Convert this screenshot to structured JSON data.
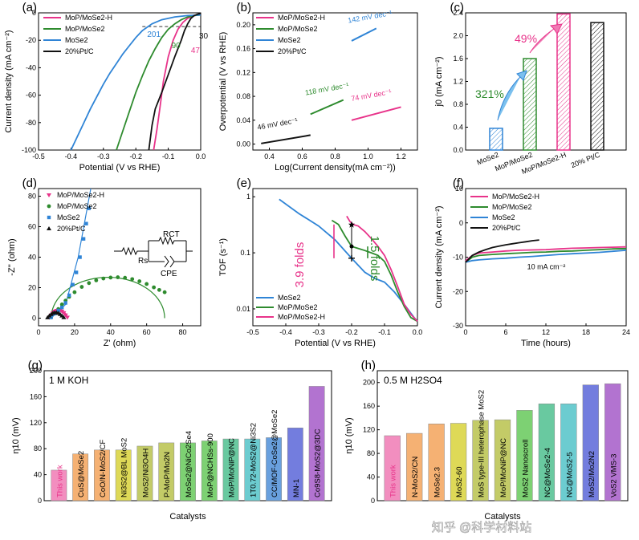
{
  "colors": {
    "mop_mose2_h": "#e8338a",
    "mop_mose2": "#2e8b2e",
    "mose2": "#2f84d6",
    "ptc": "#111111",
    "bar_g_pink": "#f07ab4",
    "bar_g_orange": "#f3a35a",
    "bar_g_yellow": "#d8d23a",
    "bar_g_olive": "#b9c24c",
    "bar_g_green": "#66c95a",
    "bar_g_teal": "#4fbf8f",
    "bar_g_cyan": "#52c3c8",
    "bar_g_blue": "#4f8fd8",
    "bar_g_indigo": "#5a66d8",
    "bar_g_violet": "#8a5ad8",
    "bar_g_purple": "#a55ac8"
  },
  "watermark": "知乎 @科学材料站",
  "chart_data": [
    {
      "panel": "(a)",
      "type": "line",
      "xlabel": "Potential (V vs RHE)",
      "ylabel": "Current density (mA cm⁻²)",
      "xlim": [
        -0.5,
        0.0
      ],
      "ylim": [
        -100,
        0
      ],
      "xticks": [
        "-0.5",
        "-0.4",
        "-0.3",
        "-0.2",
        "-0.1",
        "0.0"
      ],
      "yticks": [
        "0",
        "-20",
        "-40",
        "-60",
        "-80",
        "-100"
      ],
      "legend": [
        "MoP/MoSe2-H",
        "MoP/MoSe2",
        "MoSe2",
        "20%Pt/C"
      ],
      "annotations": [
        "201",
        "90",
        "47",
        "30"
      ],
      "reference_line_y": -10,
      "series": [
        {
          "name": "MoP/MoSe2-H",
          "color_key": "mop_mose2_h",
          "x": [
            -0.145,
            -0.135,
            -0.125,
            -0.115,
            -0.1,
            -0.085,
            -0.07,
            -0.055,
            -0.04,
            -0.025,
            -0.012,
            0.0
          ],
          "y": [
            -100,
            -85,
            -68,
            -50,
            -32,
            -20,
            -12,
            -7,
            -4,
            -2.5,
            -1.5,
            -1
          ]
        },
        {
          "name": "MoP/MoSe2",
          "color_key": "mop_mose2",
          "x": [
            -0.26,
            -0.24,
            -0.22,
            -0.2,
            -0.18,
            -0.16,
            -0.14,
            -0.12,
            -0.1,
            -0.08,
            -0.06,
            -0.04,
            -0.02,
            0.0
          ],
          "y": [
            -100,
            -86,
            -72,
            -58,
            -46,
            -35,
            -26,
            -18,
            -12,
            -8,
            -5,
            -3,
            -2,
            -1.5
          ]
        },
        {
          "name": "MoSe2",
          "color_key": "mose2",
          "x": [
            -0.4,
            -0.38,
            -0.36,
            -0.34,
            -0.32,
            -0.3,
            -0.28,
            -0.26,
            -0.24,
            -0.22,
            -0.2,
            -0.18,
            -0.15,
            -0.12,
            -0.08,
            -0.04,
            0.0
          ],
          "y": [
            -100,
            -90,
            -80,
            -70,
            -61,
            -52,
            -44,
            -37,
            -30,
            -24,
            -18,
            -13,
            -8,
            -5,
            -3,
            -2,
            -1.5
          ]
        },
        {
          "name": "20%Pt/C",
          "color_key": "ptc",
          "x": [
            -0.16,
            -0.15,
            -0.14,
            -0.12,
            -0.1,
            -0.08,
            -0.06,
            -0.05,
            -0.04,
            -0.03,
            -0.02,
            -0.01,
            0.0
          ],
          "y": [
            -100,
            -82,
            -70,
            -58,
            -45,
            -32,
            -20,
            -13,
            -8,
            -4,
            -2,
            -1,
            -0.5
          ]
        }
      ]
    },
    {
      "panel": "(b)",
      "type": "line",
      "xlabel": "Log(Current density(mA cm⁻²))",
      "ylabel": "Overpotential (V vs RHE)",
      "xlim": [
        0.3,
        1.3
      ],
      "ylim": [
        -0.01,
        0.22
      ],
      "xticks": [
        "0.4",
        "0.6",
        "0.8",
        "1.0",
        "1.2"
      ],
      "yticks": [
        "0.00",
        "0.04",
        "0.08",
        "0.12",
        "0.16",
        "0.20"
      ],
      "legend": [
        "MoP/MoSe2-H",
        "MoP/MoSe2",
        "MoSe2",
        "20%Pt/C"
      ],
      "series": [
        {
          "name": "MoP/MoSe2-H",
          "color_key": "mop_mose2_h",
          "x": [
            0.9,
            1.2
          ],
          "y": [
            0.04,
            0.062
          ],
          "label": "74 mV dec⁻¹"
        },
        {
          "name": "MoP/MoSe2",
          "color_key": "mop_mose2",
          "x": [
            0.65,
            0.85
          ],
          "y": [
            0.05,
            0.074
          ],
          "label": "118 mV dec⁻¹"
        },
        {
          "name": "MoSe2",
          "color_key": "mose2",
          "x": [
            0.9,
            1.05
          ],
          "y": [
            0.173,
            0.194
          ],
          "label": "142 mV dec⁻¹"
        },
        {
          "name": "20%Pt/C",
          "color_key": "ptc",
          "x": [
            0.35,
            0.65
          ],
          "y": [
            0.001,
            0.015
          ],
          "label": "46 mV dec⁻¹"
        }
      ]
    },
    {
      "panel": "(c)",
      "type": "bar",
      "ylabel": "j0 (mA cm⁻²)",
      "ylim": [
        0,
        2.4
      ],
      "yticks": [
        "0.0",
        "0.4",
        "0.8",
        "1.2",
        "1.6",
        "2.0",
        "2.4"
      ],
      "categories": [
        "MoSe2",
        "MoP/MoSe2",
        "MoP/MoSe2-H",
        "20% Pt/C"
      ],
      "values": [
        0.38,
        1.6,
        2.38,
        2.23
      ],
      "color_keys": [
        "mose2",
        "mop_mose2",
        "mop_mose2_h",
        "ptc"
      ],
      "annotations": [
        "321%",
        "49%"
      ]
    },
    {
      "panel": "(d)",
      "type": "scatter",
      "xlabel": "Z' (ohm)",
      "ylabel": "-Z'' (ohm)",
      "xlim": [
        0,
        90
      ],
      "ylim": [
        -5,
        85
      ],
      "xticks": [
        "0",
        "20",
        "40",
        "60",
        "80"
      ],
      "yticks": [
        "0",
        "20",
        "40",
        "60",
        "80"
      ],
      "legend": [
        "MoP/MoSe2-H",
        "MoP/MoSe2",
        "MoSe2",
        "20%Pt/C"
      ],
      "circuit_labels": [
        "Rs",
        "RCT",
        "CPE"
      ],
      "series": [
        {
          "name": "MoP/MoSe2-H",
          "color_key": "mop_mose2_h",
          "marker": "triangle-down",
          "x": [
            6,
            7,
            8,
            9,
            10,
            11,
            12,
            13,
            14,
            15,
            16
          ],
          "y": [
            0.5,
            2,
            3.5,
            4.5,
            5,
            5.2,
            5,
            4.5,
            3.5,
            2,
            0.5
          ]
        },
        {
          "name": "MoP/MoSe2",
          "color_key": "mop_mose2",
          "marker": "circle",
          "x": [
            7,
            9,
            11,
            13,
            15,
            17,
            20,
            24,
            28,
            32,
            36,
            40,
            44,
            48,
            52,
            56,
            60,
            64,
            67,
            70
          ],
          "y": [
            0.5,
            3,
            6,
            9,
            11.5,
            14,
            17,
            20.5,
            23,
            24.8,
            26,
            26.6,
            26.8,
            26.5,
            25.6,
            24.2,
            22.4,
            20.2,
            18.5,
            17
          ]
        },
        {
          "name": "MoSe2",
          "color_key": "mose2",
          "marker": "square",
          "x": [
            7,
            9,
            11,
            13,
            15,
            17,
            19,
            21,
            23,
            25,
            26.5,
            28
          ],
          "y": [
            0.5,
            3,
            5,
            7,
            10,
            15,
            22,
            30,
            40,
            52,
            62,
            72
          ]
        },
        {
          "name": "20%Pt/C",
          "color_key": "ptc",
          "marker": "triangle-up",
          "x": [
            5,
            6,
            7,
            8,
            9,
            10,
            11,
            12,
            13,
            14
          ],
          "y": [
            0.3,
            1.5,
            2.5,
            3.3,
            3.6,
            3.6,
            3.2,
            2.5,
            1.5,
            0.4
          ]
        }
      ]
    },
    {
      "panel": "(e)",
      "type": "line",
      "xlabel": "Potential (V vs RHE)",
      "ylabel": "TOF (s⁻¹)",
      "xlim": [
        -0.5,
        0.0
      ],
      "ylim": [
        0.005,
        1.4
      ],
      "ylog": true,
      "xticks": [
        "-0.5",
        "-0.4",
        "-0.3",
        "-0.2",
        "-0.1",
        "0.0"
      ],
      "yticks": [
        "0.01",
        "0.1",
        "1"
      ],
      "legend": [
        "MoSe2",
        "MoP/MoSe2",
        "MoP/MoSe2-H"
      ],
      "annotations": [
        "3.9 folds",
        "1.5 folds"
      ],
      "series": [
        {
          "name": "MoSe2",
          "color_key": "mose2",
          "x": [
            -0.42,
            -0.36,
            -0.3,
            -0.25,
            -0.2,
            -0.16,
            -0.13,
            -0.1,
            -0.07,
            -0.04,
            -0.01,
            0.0
          ],
          "y": [
            0.9,
            0.5,
            0.3,
            0.17,
            0.08,
            0.045,
            0.035,
            0.03,
            0.02,
            0.012,
            0.007,
            0.006
          ]
        },
        {
          "name": "MoP/MoSe2",
          "color_key": "mop_mose2",
          "x": [
            -0.26,
            -0.24,
            -0.22,
            -0.2,
            -0.18,
            -0.16,
            -0.14,
            -0.12,
            -0.1,
            -0.08,
            -0.06,
            -0.04,
            -0.02,
            0.0
          ],
          "y": [
            0.38,
            0.32,
            0.2,
            0.13,
            0.12,
            0.11,
            0.1,
            0.09,
            0.07,
            0.04,
            0.02,
            0.011,
            0.007,
            0.006
          ]
        },
        {
          "name": "MoP/MoSe2-H",
          "color_key": "mop_mose2_h",
          "x": [
            -0.215,
            -0.205,
            -0.195,
            -0.18,
            -0.16,
            -0.14,
            -0.12,
            -0.1,
            -0.08,
            -0.06,
            -0.04,
            -0.02,
            0.0
          ],
          "y": [
            0.45,
            0.36,
            0.32,
            0.3,
            0.24,
            0.18,
            0.13,
            0.09,
            0.05,
            0.025,
            0.012,
            0.008,
            0.006
          ]
        }
      ]
    },
    {
      "panel": "(f)",
      "type": "line",
      "xlabel": "Time (hours)",
      "ylabel": "Current density (mA cm⁻²)",
      "xlim": [
        0,
        24
      ],
      "ylim": [
        -30,
        10
      ],
      "xticks": [
        "0",
        "6",
        "12",
        "18",
        "24"
      ],
      "yticks": [
        "10",
        "0",
        "-10",
        "-20",
        "-30"
      ],
      "legend": [
        "MoP/MoSe2-H",
        "MoP/MoSe2",
        "MoSe2",
        "20%Pt/C"
      ],
      "annotations": [
        "10 mA cm⁻²"
      ],
      "series": [
        {
          "name": "MoP/MoSe2-H",
          "color_key": "mop_mose2_h",
          "x": [
            0,
            1,
            2,
            4,
            6,
            8,
            10,
            12,
            14,
            16,
            18,
            20,
            22,
            24
          ],
          "y": [
            -11,
            -9.5,
            -8.8,
            -8.5,
            -8.2,
            -8,
            -7.9,
            -7.8,
            -7.6,
            -7.4,
            -7.3,
            -7.2,
            -7.1,
            -7
          ]
        },
        {
          "name": "MoP/MoSe2",
          "color_key": "mop_mose2",
          "x": [
            0,
            1,
            2,
            4,
            6,
            8,
            10,
            12,
            14,
            16,
            18,
            20,
            22,
            24
          ],
          "y": [
            -11.5,
            -10,
            -9.5,
            -9.2,
            -9,
            -8.8,
            -8.6,
            -8.5,
            -8.3,
            -8.2,
            -8,
            -7.8,
            -7.6,
            -7.5
          ]
        },
        {
          "name": "MoSe2",
          "color_key": "mose2",
          "x": [
            0,
            1,
            2,
            4,
            6,
            8,
            10,
            12,
            14,
            16,
            18,
            20,
            22,
            24
          ],
          "y": [
            -11.5,
            -11,
            -10.8,
            -10.5,
            -10.3,
            -10,
            -9.8,
            -9.5,
            -9.2,
            -9,
            -8.8,
            -8.6,
            -8.3,
            -8
          ]
        },
        {
          "name": "20%Pt/C",
          "color_key": "ptc",
          "x": [
            0,
            1,
            2,
            3,
            4,
            5,
            6,
            7,
            8,
            9,
            10,
            11
          ],
          "y": [
            -11.5,
            -9.5,
            -8.5,
            -7.8,
            -7.2,
            -6.8,
            -6.4,
            -6.1,
            -5.8,
            -5.5,
            -5.2,
            -5
          ]
        }
      ]
    },
    {
      "panel": "(g)",
      "type": "bar",
      "title": "1 M KOH",
      "xlabel": "Catalysts",
      "ylabel": "η10 (mV)",
      "ylim": [
        0,
        200
      ],
      "yticks": [
        "0",
        "40",
        "80",
        "120",
        "160",
        "200"
      ],
      "categories": [
        "This work",
        "CuS@MoSe2",
        "CoO/N-MoS2/CF",
        "Ni3S2@BL MoS2",
        "MoS2/Ni3O4H",
        "P-MoP/Mo2N",
        "MoSe2@NiCo2Se4",
        "MoP@NCHSs-900",
        "MoP/MoNiP@NC",
        "1T0.72-MoS2@Ni3S2",
        "CC/MOF-CoSe2@MoSe2",
        "MN-1",
        "Co9S8-MoS2@3DC"
      ],
      "values": [
        47,
        72,
        78,
        78,
        84,
        89,
        89,
        92,
        95,
        95,
        97,
        112,
        176
      ],
      "color_keys": [
        "bar_g_pink",
        "bar_g_orange",
        "bar_g_orange",
        "bar_g_yellow",
        "bar_g_olive",
        "bar_g_olive",
        "bar_g_green",
        "bar_g_green",
        "bar_g_teal",
        "bar_g_cyan",
        "bar_g_blue",
        "bar_g_indigo",
        "bar_g_purple"
      ]
    },
    {
      "panel": "(h)",
      "type": "bar",
      "title": "0.5 M H2SO4",
      "xlabel": "Catalysts",
      "ylabel": "η10 (mV)",
      "ylim": [
        0,
        220
      ],
      "yticks": [
        "0",
        "40",
        "80",
        "120",
        "160",
        "200"
      ],
      "categories": [
        "This work",
        "N-MoS2/CN",
        "MoSe2.3",
        "MoS2-60",
        "MoS type-III heterophase MoS2",
        "MoP/MoNiP@NC",
        "MoS2 Nanoscroll",
        "NC@MoSe2-4",
        "NC@MoS2-5",
        "MoS2/Mo2N2",
        "VoS2 VMS-3"
      ],
      "values": [
        110,
        114,
        130,
        131,
        136,
        137,
        153,
        164,
        164,
        196,
        198
      ],
      "color_keys": [
        "bar_g_pink",
        "bar_g_orange",
        "bar_g_orange",
        "bar_g_yellow",
        "bar_g_olive",
        "bar_g_olive",
        "bar_g_green",
        "bar_g_teal",
        "bar_g_cyan",
        "bar_g_indigo",
        "bar_g_purple"
      ]
    }
  ]
}
